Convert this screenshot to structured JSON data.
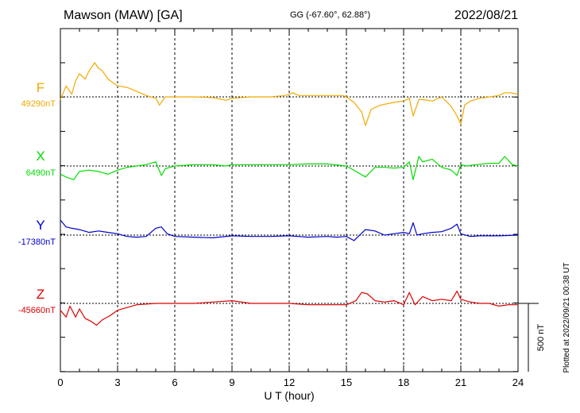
{
  "header": {
    "station": "Mawson (MAW)  [GA]",
    "coords": "GG (-67.60°,  62.88°)",
    "date": "2022/08/21"
  },
  "footer": {
    "plotted": "Plotted at 2022/09/21 00:38 UT"
  },
  "chart_data": {
    "type": "line",
    "xlabel": "U T (hour)",
    "xlim": [
      0,
      24
    ],
    "xticks": [
      "0",
      "3",
      "6",
      "9",
      "12",
      "15",
      "18",
      "21",
      "24"
    ],
    "scale_bar": "500 nT",
    "colors": {
      "F": "#f2a900",
      "X": "#00dd00",
      "Y": "#0000cc",
      "Z": "#dd0000"
    },
    "series": [
      {
        "name": "F",
        "baseline_label": "49290nT",
        "baseline": 49290,
        "color": "#f2a900",
        "x": [
          0,
          0.3,
          0.6,
          0.8,
          1.0,
          1.3,
          1.5,
          1.8,
          2.0,
          2.2,
          2.5,
          3.0,
          3.5,
          4.0,
          4.5,
          5.0,
          5.2,
          5.5,
          6.0,
          7.0,
          8.0,
          8.7,
          9.0,
          10.0,
          11.0,
          11.8,
          12.2,
          12.5,
          13.0,
          14.0,
          14.8,
          15.0,
          15.4,
          15.8,
          16.0,
          16.3,
          16.8,
          17.5,
          18.0,
          18.3,
          18.5,
          18.8,
          19.0,
          19.5,
          20.0,
          20.5,
          20.8,
          21.0,
          21.2,
          21.5,
          22.0,
          22.5,
          23.0,
          23.3,
          23.6,
          24.0
        ],
        "values": [
          49270,
          49370,
          49310,
          49410,
          49460,
          49420,
          49480,
          49540,
          49500,
          49480,
          49420,
          49370,
          49360,
          49330,
          49300,
          49280,
          49230,
          49290,
          49290,
          49290,
          49285,
          49265,
          49280,
          49290,
          49290,
          49300,
          49320,
          49300,
          49300,
          49300,
          49300,
          49290,
          49250,
          49180,
          49080,
          49200,
          49230,
          49250,
          49260,
          49280,
          49150,
          49270,
          49270,
          49260,
          49290,
          49220,
          49150,
          49090,
          49230,
          49260,
          49280,
          49290,
          49300,
          49320,
          49320,
          49310
        ]
      },
      {
        "name": "X",
        "baseline_label": "6490nT",
        "baseline": 6490,
        "color": "#00dd00",
        "x": [
          0,
          0.3,
          0.7,
          1.0,
          1.5,
          2.0,
          2.5,
          3.0,
          3.5,
          4.0,
          4.5,
          5.0,
          5.3,
          5.5,
          6.0,
          7.0,
          8.0,
          8.7,
          9.0,
          10.0,
          11.0,
          12.0,
          13.0,
          14.0,
          15.0,
          15.5,
          16.0,
          16.5,
          17.0,
          17.5,
          18.0,
          18.3,
          18.5,
          18.8,
          19.0,
          19.5,
          20.0,
          20.5,
          20.8,
          21.0,
          21.3,
          21.8,
          22.5,
          23.0,
          23.3,
          23.7,
          24.0
        ],
        "values": [
          6430,
          6410,
          6390,
          6450,
          6460,
          6450,
          6430,
          6460,
          6480,
          6490,
          6500,
          6520,
          6420,
          6470,
          6490,
          6500,
          6500,
          6490,
          6500,
          6500,
          6500,
          6500,
          6505,
          6505,
          6490,
          6450,
          6410,
          6480,
          6480,
          6475,
          6480,
          6520,
          6390,
          6560,
          6520,
          6540,
          6480,
          6460,
          6420,
          6500,
          6490,
          6500,
          6510,
          6510,
          6560,
          6500,
          6490
        ]
      },
      {
        "name": "Y",
        "baseline_label": "-17380nT",
        "baseline": -17380,
        "color": "#0000cc",
        "x": [
          0,
          0.3,
          0.6,
          1.0,
          1.5,
          2.0,
          2.5,
          3.0,
          3.5,
          4.0,
          4.5,
          5.0,
          5.3,
          5.6,
          6.0,
          7.0,
          8.0,
          9.0,
          10.0,
          11.0,
          12.0,
          13.0,
          14.0,
          14.5,
          15.0,
          15.4,
          16.0,
          16.5,
          17.0,
          17.5,
          18.0,
          18.3,
          18.5,
          18.7,
          19.0,
          19.5,
          20.0,
          20.5,
          20.8,
          21.0,
          21.5,
          22.0,
          23.0,
          24.0
        ],
        "values": [
          -17270,
          -17320,
          -17330,
          -17340,
          -17360,
          -17350,
          -17360,
          -17370,
          -17390,
          -17395,
          -17390,
          -17330,
          -17320,
          -17370,
          -17390,
          -17395,
          -17400,
          -17385,
          -17390,
          -17390,
          -17385,
          -17395,
          -17390,
          -17395,
          -17390,
          -17420,
          -17340,
          -17350,
          -17380,
          -17370,
          -17360,
          -17370,
          -17290,
          -17380,
          -17370,
          -17360,
          -17355,
          -17330,
          -17300,
          -17370,
          -17390,
          -17385,
          -17385,
          -17380
        ]
      },
      {
        "name": "Z",
        "baseline_label": "-45660nT",
        "baseline": -45660,
        "color": "#dd0000",
        "x": [
          0,
          0.3,
          0.5,
          0.8,
          1.0,
          1.3,
          1.6,
          1.9,
          2.2,
          2.6,
          3.0,
          3.5,
          4.0,
          5.0,
          6.0,
          7.0,
          8.0,
          9.0,
          10.0,
          11.0,
          12.0,
          13.0,
          14.0,
          15.0,
          15.5,
          15.8,
          16.1,
          16.5,
          17.0,
          17.5,
          18.0,
          18.3,
          18.6,
          19.0,
          19.5,
          20.0,
          20.5,
          20.8,
          21.0,
          21.5,
          22.0,
          22.5,
          23.0,
          23.5,
          24.0
        ],
        "values": [
          -45710,
          -45760,
          -45680,
          -45760,
          -45700,
          -45770,
          -45790,
          -45820,
          -45780,
          -45750,
          -45710,
          -45690,
          -45670,
          -45660,
          -45660,
          -45660,
          -45650,
          -45640,
          -45660,
          -45660,
          -45660,
          -45670,
          -45670,
          -45670,
          -45640,
          -45580,
          -45590,
          -45640,
          -45650,
          -45640,
          -45670,
          -45580,
          -45670,
          -45610,
          -45640,
          -45630,
          -45640,
          -45570,
          -45630,
          -45650,
          -45660,
          -45660,
          -45680,
          -45670,
          -45670
        ]
      }
    ]
  }
}
